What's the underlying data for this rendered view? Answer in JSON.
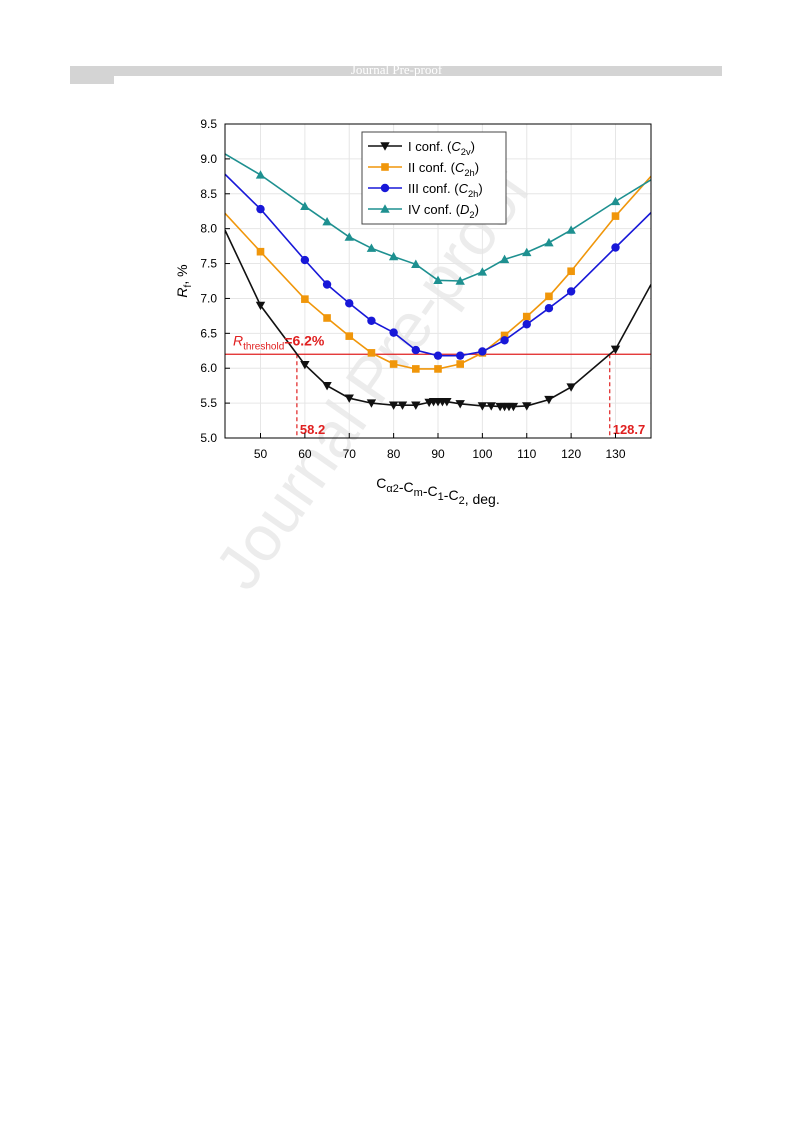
{
  "page": {
    "header_text": "Journal Pre-proof",
    "watermark": "Journal Pre-proof"
  },
  "chart_data": {
    "type": "line",
    "title": "",
    "xlabel": "Cα2-Cm-C1-C2, deg.",
    "ylabel": "Rf, %",
    "xlim": [
      42,
      138
    ],
    "ylim": [
      5.0,
      9.5
    ],
    "xticks": [
      50,
      60,
      70,
      80,
      90,
      100,
      110,
      120,
      130
    ],
    "yticks": [
      5.0,
      5.5,
      6.0,
      6.5,
      7.0,
      7.5,
      8.0,
      8.5,
      9.0,
      9.5
    ],
    "grid": true,
    "legend_position": "top-center",
    "threshold": {
      "value": 6.2,
      "label": "Rthreshold=6.2%",
      "color": "#e02020",
      "crossings": [
        58.2,
        128.7
      ],
      "crossing_labels": [
        "58.2",
        "128.7"
      ]
    },
    "series": [
      {
        "name": "I conf. (C2v)",
        "color": "#111111",
        "marker": "triangle-down",
        "x": [
          42,
          50,
          60,
          65,
          70,
          75,
          80,
          82,
          85,
          88,
          89,
          90,
          91,
          92,
          95,
          100,
          102,
          104,
          105,
          106,
          107,
          110,
          115,
          120,
          130,
          138
        ],
        "y": [
          7.98,
          6.9,
          6.05,
          5.75,
          5.57,
          5.5,
          5.47,
          5.47,
          5.47,
          5.51,
          5.52,
          5.52,
          5.52,
          5.52,
          5.49,
          5.46,
          5.46,
          5.45,
          5.45,
          5.45,
          5.45,
          5.46,
          5.55,
          5.73,
          6.27,
          7.2
        ]
      },
      {
        "name": "II conf. (C2h)",
        "color": "#f0960a",
        "marker": "square",
        "x": [
          42,
          50,
          60,
          65,
          70,
          75,
          80,
          85,
          90,
          95,
          100,
          105,
          110,
          115,
          120,
          130,
          138
        ],
        "y": [
          8.22,
          7.67,
          6.99,
          6.72,
          6.46,
          6.22,
          6.06,
          5.99,
          5.99,
          6.06,
          6.22,
          6.47,
          6.74,
          7.03,
          7.39,
          8.18,
          8.75
        ]
      },
      {
        "name": "III conf. (C2h)",
        "color": "#1818d8",
        "marker": "circle",
        "x": [
          42,
          50,
          60,
          65,
          70,
          75,
          80,
          85,
          90,
          95,
          100,
          105,
          110,
          115,
          120,
          130,
          138
        ],
        "y": [
          8.78,
          8.28,
          7.55,
          7.2,
          6.93,
          6.68,
          6.51,
          6.26,
          6.18,
          6.18,
          6.24,
          6.4,
          6.63,
          6.86,
          7.1,
          7.73,
          8.23
        ]
      },
      {
        "name": "IV conf. (D2)",
        "color": "#1e9090",
        "marker": "triangle-up",
        "x": [
          42,
          50,
          60,
          65,
          70,
          75,
          80,
          85,
          90,
          95,
          100,
          105,
          110,
          115,
          120,
          130,
          138
        ],
        "y": [
          9.07,
          8.77,
          8.32,
          8.1,
          7.88,
          7.72,
          7.6,
          7.49,
          7.26,
          7.25,
          7.38,
          7.56,
          7.66,
          7.8,
          7.98,
          8.39,
          8.7
        ]
      }
    ]
  }
}
